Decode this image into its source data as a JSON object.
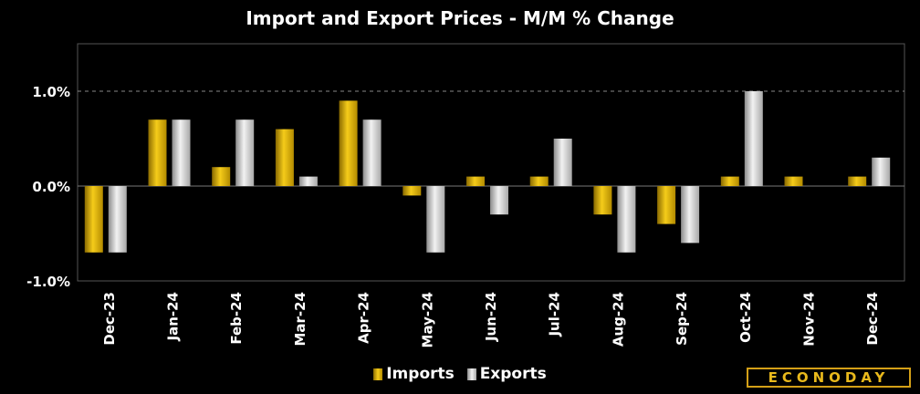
{
  "chart_data": {
    "type": "bar",
    "title": "Import and Export Prices - M/M % Change",
    "categories": [
      "Dec-23",
      "Jan-24",
      "Feb-24",
      "Mar-24",
      "Apr-24",
      "May-24",
      "Jun-24",
      "Jul-24",
      "Aug-24",
      "Sep-24",
      "Oct-24",
      "Nov-24",
      "Dec-24"
    ],
    "series": [
      {
        "name": "Imports",
        "values": [
          -0.7,
          0.7,
          0.2,
          0.6,
          0.9,
          -0.1,
          0.1,
          0.1,
          -0.3,
          -0.4,
          0.1,
          0.1,
          0.1
        ],
        "color": "#e6b800"
      },
      {
        "name": "Exports",
        "values": [
          -0.7,
          0.7,
          0.7,
          0.1,
          0.7,
          -0.7,
          -0.3,
          0.5,
          -0.7,
          -0.6,
          1.0,
          0.0,
          0.3
        ],
        "color": "#d0d0d0"
      }
    ],
    "ylim": [
      -1.0,
      1.5
    ],
    "yticks": [
      -1.0,
      0.0,
      1.0
    ],
    "ytick_labels": [
      "-1.0%",
      "0.0%",
      "1.0%"
    ],
    "grid": "dashed line at 1.0%",
    "legend": "bottom-center",
    "xlabel": "",
    "ylabel": ""
  },
  "brand": {
    "logo_text": "ECONODAY"
  }
}
